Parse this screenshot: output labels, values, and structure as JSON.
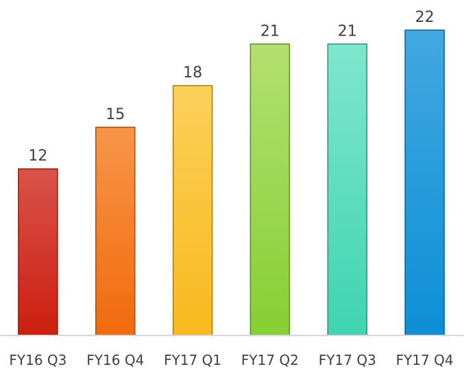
{
  "chart_data": {
    "type": "bar",
    "title": "",
    "xlabel": "",
    "ylabel": "",
    "categories": [
      "FY16 Q3",
      "FY16 Q4",
      "FY17 Q1",
      "FY17 Q2",
      "FY17 Q3",
      "FY17 Q4"
    ],
    "values": [
      12,
      15,
      18,
      21,
      21,
      22
    ],
    "data_labels": [
      "12",
      "15",
      "18",
      "21",
      "21",
      "22"
    ],
    "ylim": [
      0,
      22
    ],
    "grid": false,
    "legend": "none",
    "bar_colors": [
      {
        "top": "#d9534a",
        "bottom": "#cc1e0f",
        "edge": "#8f1a10"
      },
      {
        "top": "#f79548",
        "bottom": "#f26a0c",
        "edge": "#a8490a"
      },
      {
        "top": "#fbd05a",
        "bottom": "#f9b91d",
        "edge": "#a67c10"
      },
      {
        "top": "#b3e070",
        "bottom": "#86cf34",
        "edge": "#5a8c22"
      },
      {
        "top": "#7fe6cc",
        "bottom": "#3fd4b0",
        "edge": "#2a8f76"
      },
      {
        "top": "#42a8e0",
        "bottom": "#0d8fd6",
        "edge": "#0a5f8f"
      }
    ],
    "axis_color": "#d9d9d9",
    "label_color": "#404040"
  }
}
